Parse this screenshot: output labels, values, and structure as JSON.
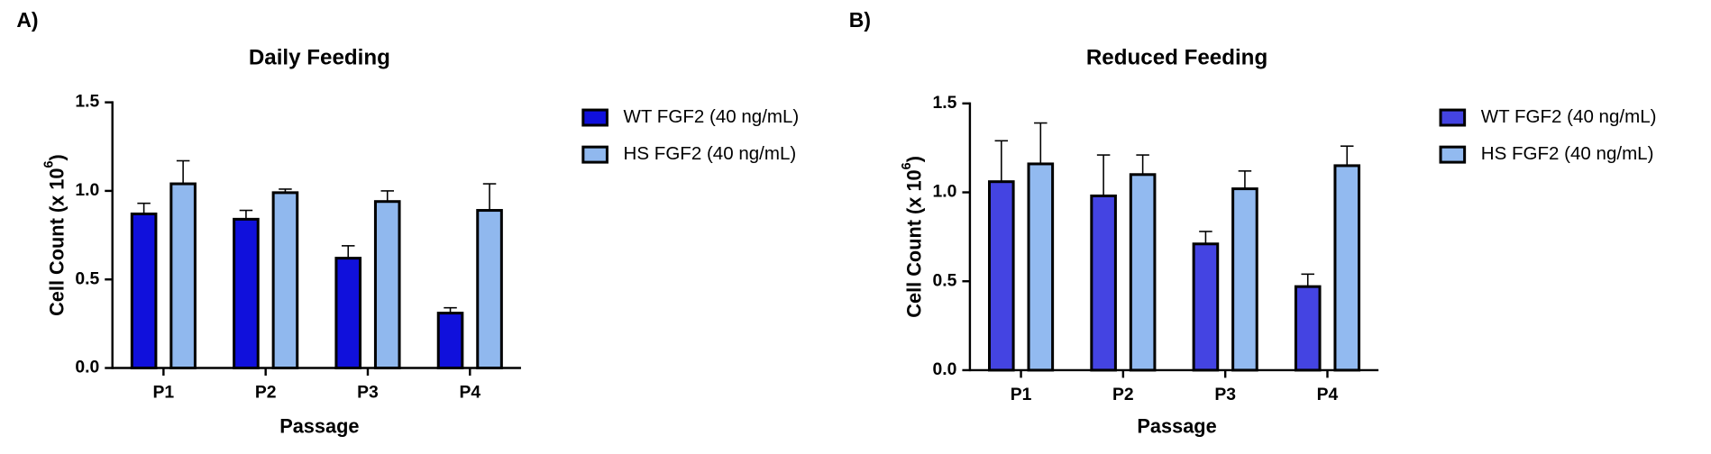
{
  "chart_data": [
    {
      "type": "bar",
      "panel_label": "A)",
      "title": "Daily Feeding",
      "ylabel": "Cell  Count  (x 10",
      "ylabel_sup": "6",
      "ylabel_end": ")",
      "xlabel": "Passage",
      "categories": [
        "P1",
        "P2",
        "P3",
        "P4"
      ],
      "series": [
        {
          "name": "WT FGF2 (40 ng/mL)",
          "color": "#1010dc",
          "values": [
            0.87,
            0.84,
            0.62,
            0.31
          ],
          "errors": [
            0.06,
            0.05,
            0.07,
            0.03
          ]
        },
        {
          "name": "HS FGF2 (40 ng/mL)",
          "color": "#90b8ee",
          "values": [
            1.04,
            0.99,
            0.94,
            0.89
          ],
          "errors": [
            0.13,
            0.02,
            0.06,
            0.15
          ]
        }
      ],
      "ylim": [
        0,
        1.5
      ],
      "yticks": [
        {
          "value": 0,
          "label": "0.0"
        },
        0.5,
        {
          "value": 1,
          "label": "1.0"
        },
        1.5
      ]
    },
    {
      "type": "bar",
      "panel_label": "B)",
      "title": "Reduced Feeding",
      "ylabel": "Cell  Count  (x 10",
      "ylabel_sup": "6",
      "ylabel_end": ")",
      "xlabel": "Passage",
      "categories": [
        "P1",
        "P2",
        "P3",
        "P4"
      ],
      "series": [
        {
          "name": "WT FGF2 (40 ng/mL)",
          "color": "#4444e2",
          "values": [
            1.06,
            0.98,
            0.71,
            0.47
          ],
          "errors": [
            0.23,
            0.23,
            0.07,
            0.07
          ]
        },
        {
          "name": "HS FGF2 (40 ng/mL)",
          "color": "#92baf0",
          "values": [
            1.16,
            1.1,
            1.02,
            1.15
          ],
          "errors": [
            0.23,
            0.11,
            0.1,
            0.11
          ]
        }
      ],
      "ylim": [
        0,
        1.5
      ],
      "yticks": [
        {
          "value": 0,
          "label": "0.0"
        },
        0.5,
        {
          "value": 1,
          "label": "1.0"
        },
        1.5
      ]
    }
  ]
}
